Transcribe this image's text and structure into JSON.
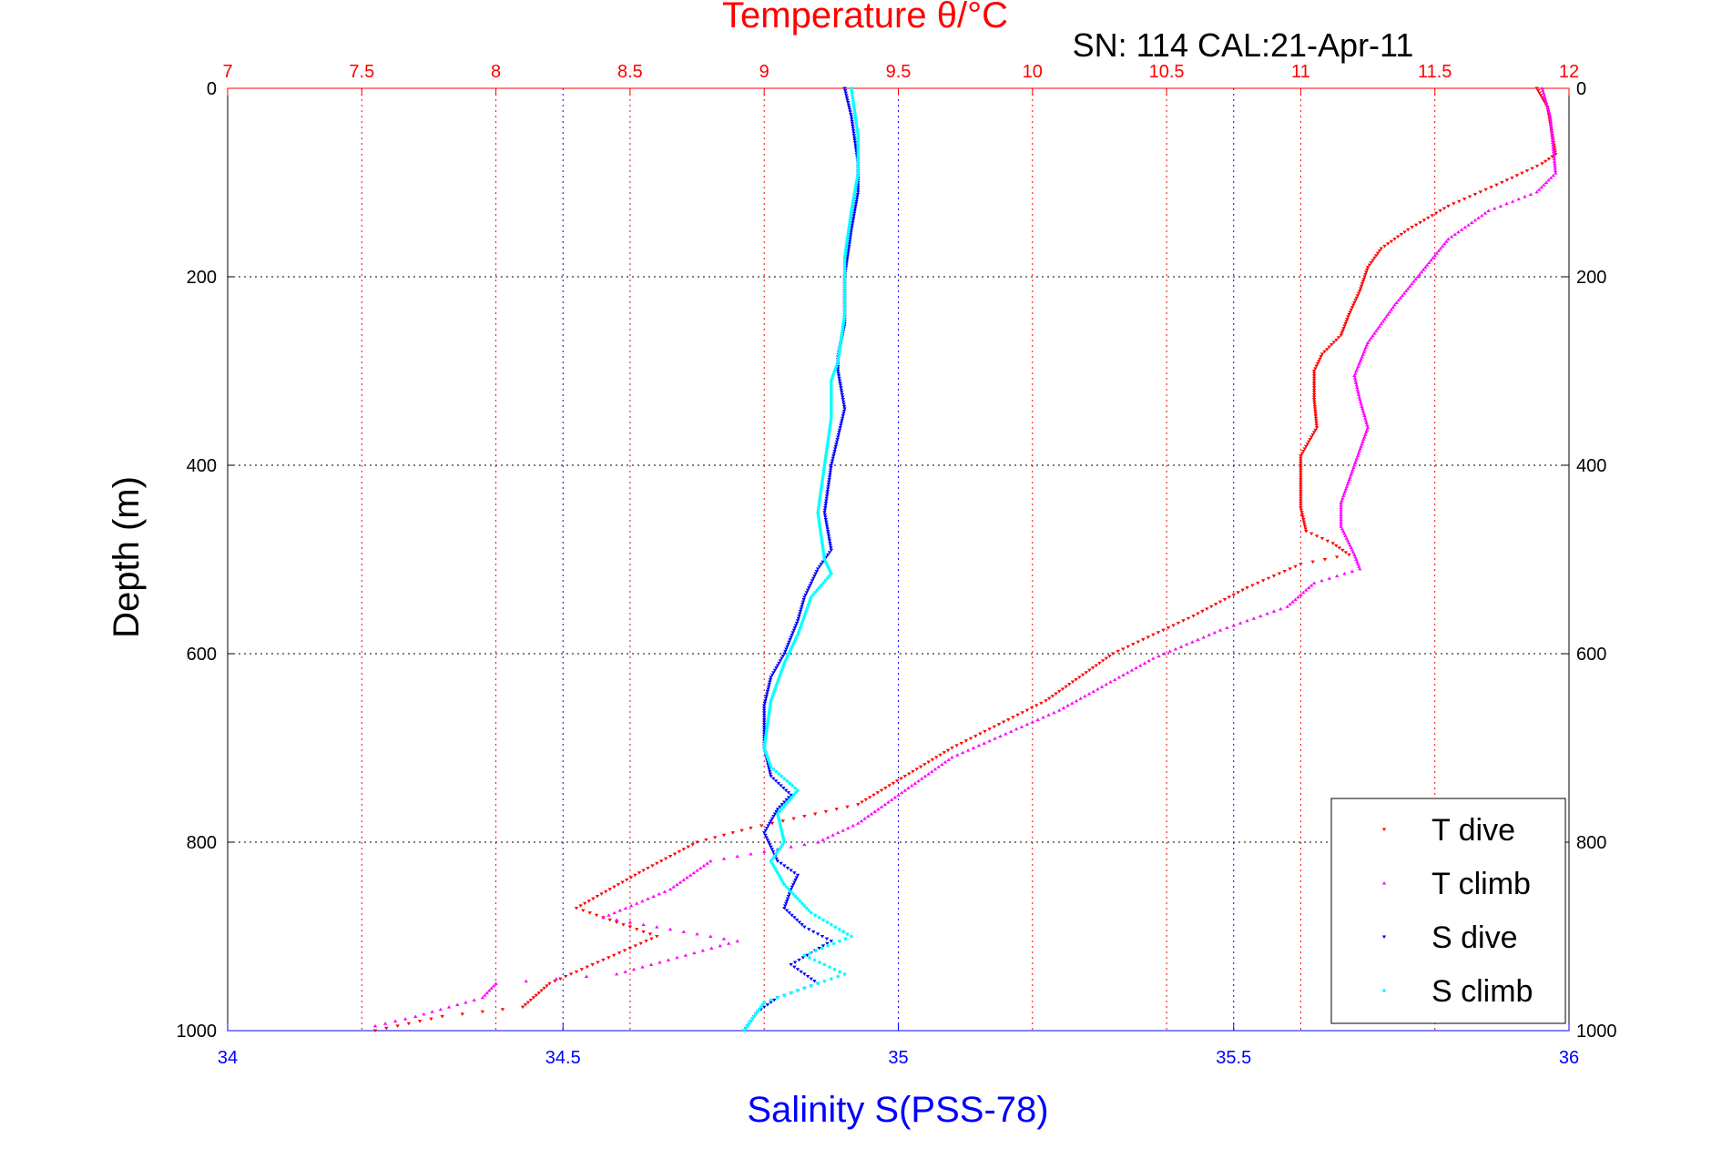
{
  "colors": {
    "t_dive": "#ff0000",
    "t_climb": "#ff00ff",
    "s_dive": "#0000ff",
    "s_climb": "#00ffff",
    "temperature_axis": "#ff0000",
    "salinity_axis": "#0000ff"
  },
  "chart_data": {
    "type": "scatter",
    "title": "Temperature θ/°C",
    "subtitle": "SN: 114  CAL:21-Apr-11",
    "xlabel": "Salinity S(PSS-78)",
    "ylabel": "Depth (m)",
    "x_top_label": "Temperature θ/°C",
    "x_bottom_range": [
      34,
      36
    ],
    "x_top_range": [
      7,
      12
    ],
    "y_range": [
      0,
      1000
    ],
    "y_reversed": true,
    "grid": true,
    "legend_position": "bottom-right",
    "x_bottom_ticks": [
      "34",
      "34.5",
      "35",
      "35.5",
      "36"
    ],
    "x_top_ticks": [
      "7",
      "7.5",
      "8",
      "8.5",
      "9",
      "9.5",
      "10",
      "10.5",
      "11",
      "11.5",
      "12"
    ],
    "y_ticks": [
      "0",
      "200",
      "400",
      "600",
      "800",
      "1000"
    ],
    "series": [
      {
        "name": "T dive",
        "axis": "temperature",
        "marker": "triangle-down",
        "points": [
          [
            11.88,
            0
          ],
          [
            11.92,
            20
          ],
          [
            11.95,
            70
          ],
          [
            11.9,
            80
          ],
          [
            11.75,
            100
          ],
          [
            11.55,
            125
          ],
          [
            11.4,
            150
          ],
          [
            11.3,
            170
          ],
          [
            11.25,
            190
          ],
          [
            11.22,
            215
          ],
          [
            11.18,
            240
          ],
          [
            11.15,
            262
          ],
          [
            11.08,
            282
          ],
          [
            11.05,
            300
          ],
          [
            11.05,
            330
          ],
          [
            11.06,
            360
          ],
          [
            11.0,
            390
          ],
          [
            11.0,
            420
          ],
          [
            11.0,
            445
          ],
          [
            11.02,
            470
          ],
          [
            11.12,
            483
          ],
          [
            11.18,
            495
          ],
          [
            11.0,
            505
          ],
          [
            10.8,
            530
          ],
          [
            10.6,
            560
          ],
          [
            10.3,
            600
          ],
          [
            10.05,
            650
          ],
          [
            9.7,
            700
          ],
          [
            9.35,
            760
          ],
          [
            8.95,
            785
          ],
          [
            8.75,
            800
          ],
          [
            8.55,
            830
          ],
          [
            8.3,
            870
          ],
          [
            8.6,
            900
          ],
          [
            8.2,
            950
          ],
          [
            8.1,
            975
          ],
          [
            7.8,
            985
          ],
          [
            7.55,
            1000
          ]
        ]
      },
      {
        "name": "T climb",
        "axis": "temperature",
        "marker": "triangle-up",
        "points": [
          [
            11.9,
            0
          ],
          [
            11.93,
            30
          ],
          [
            11.95,
            90
          ],
          [
            11.88,
            110
          ],
          [
            11.7,
            130
          ],
          [
            11.55,
            160
          ],
          [
            11.45,
            195
          ],
          [
            11.35,
            230
          ],
          [
            11.25,
            270
          ],
          [
            11.2,
            305
          ],
          [
            11.22,
            330
          ],
          [
            11.25,
            360
          ],
          [
            11.2,
            400
          ],
          [
            11.15,
            440
          ],
          [
            11.15,
            465
          ],
          [
            11.2,
            495
          ],
          [
            11.22,
            510
          ],
          [
            11.05,
            525
          ],
          [
            10.95,
            550
          ],
          [
            10.7,
            575
          ],
          [
            10.45,
            605
          ],
          [
            10.1,
            660
          ],
          [
            9.7,
            710
          ],
          [
            9.35,
            780
          ],
          [
            9.2,
            800
          ],
          [
            8.8,
            820
          ],
          [
            8.65,
            850
          ],
          [
            8.4,
            880
          ],
          [
            8.9,
            905
          ],
          [
            8.45,
            940
          ],
          [
            8.0,
            950
          ],
          [
            7.95,
            965
          ],
          [
            7.7,
            985
          ],
          [
            7.55,
            995
          ]
        ]
      },
      {
        "name": "S dive",
        "axis": "salinity",
        "marker": "triangle-down",
        "points": [
          [
            34.92,
            0
          ],
          [
            34.93,
            30
          ],
          [
            34.94,
            80
          ],
          [
            34.94,
            110
          ],
          [
            34.93,
            150
          ],
          [
            34.92,
            200
          ],
          [
            34.92,
            250
          ],
          [
            34.91,
            285
          ],
          [
            34.91,
            300
          ],
          [
            34.92,
            340
          ],
          [
            34.9,
            400
          ],
          [
            34.89,
            450
          ],
          [
            34.9,
            490
          ],
          [
            34.88,
            510
          ],
          [
            34.86,
            540
          ],
          [
            34.85,
            565
          ],
          [
            34.83,
            600
          ],
          [
            34.81,
            625
          ],
          [
            34.8,
            655
          ],
          [
            34.8,
            700
          ],
          [
            34.81,
            730
          ],
          [
            34.84,
            750
          ],
          [
            34.82,
            765
          ],
          [
            34.8,
            790
          ],
          [
            34.82,
            820
          ],
          [
            34.85,
            835
          ],
          [
            34.84,
            850
          ],
          [
            34.83,
            870
          ],
          [
            34.86,
            890
          ],
          [
            34.9,
            905
          ],
          [
            34.84,
            930
          ],
          [
            34.88,
            950
          ],
          [
            34.82,
            965
          ],
          [
            34.79,
            980
          ],
          [
            34.77,
            1000
          ]
        ]
      },
      {
        "name": "S climb",
        "axis": "salinity",
        "marker": "dot",
        "points": [
          [
            34.93,
            0
          ],
          [
            34.94,
            50
          ],
          [
            34.94,
            90
          ],
          [
            34.93,
            130
          ],
          [
            34.92,
            180
          ],
          [
            34.92,
            240
          ],
          [
            34.91,
            290
          ],
          [
            34.9,
            310
          ],
          [
            34.9,
            350
          ],
          [
            34.89,
            400
          ],
          [
            34.88,
            450
          ],
          [
            34.89,
            500
          ],
          [
            34.9,
            515
          ],
          [
            34.87,
            540
          ],
          [
            34.85,
            580
          ],
          [
            34.83,
            610
          ],
          [
            34.81,
            650
          ],
          [
            34.8,
            700
          ],
          [
            34.81,
            720
          ],
          [
            34.85,
            745
          ],
          [
            34.82,
            770
          ],
          [
            34.83,
            800
          ],
          [
            34.81,
            820
          ],
          [
            34.83,
            845
          ],
          [
            34.87,
            875
          ],
          [
            34.93,
            900
          ],
          [
            34.86,
            920
          ],
          [
            34.92,
            940
          ],
          [
            34.8,
            970
          ],
          [
            34.78,
            990
          ],
          [
            34.77,
            1000
          ]
        ]
      }
    ]
  }
}
